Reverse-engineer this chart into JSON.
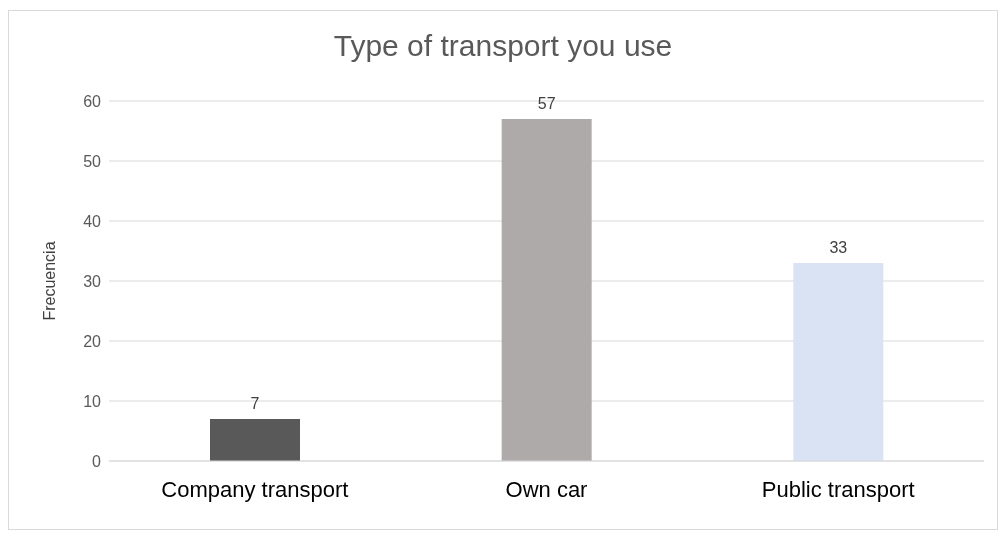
{
  "chart_data": {
    "type": "bar",
    "title": "Type of transport you use",
    "ylabel": "Frecuencia",
    "categories": [
      "Company transport",
      "Own car",
      "Public transport"
    ],
    "values": [
      7,
      57,
      33
    ],
    "colors": [
      "#595959",
      "#aeaaaa",
      "#dae3f3"
    ],
    "ylim": [
      0,
      60
    ],
    "yticks": [
      0,
      10,
      20,
      30,
      40,
      50,
      60
    ],
    "grid": "y",
    "data_labels": true
  }
}
